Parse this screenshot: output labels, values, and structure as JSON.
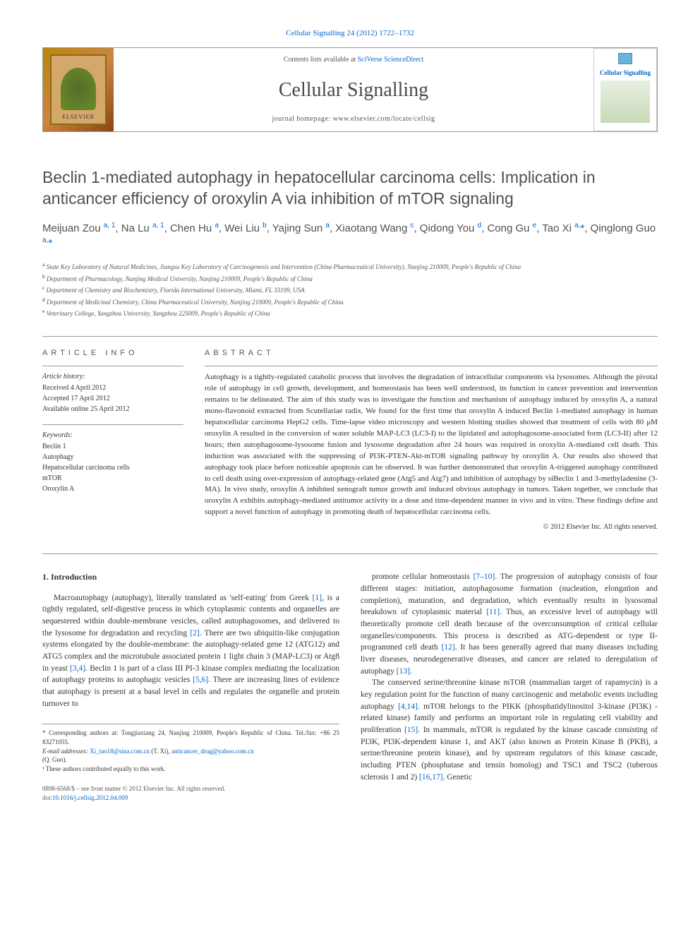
{
  "citation": "Cellular Signalling 24 (2012) 1722–1732",
  "header": {
    "contents_prefix": "Contents lists available at ",
    "contents_link": "SciVerse ScienceDirect",
    "journal_name": "Cellular Signalling",
    "homepage_prefix": "journal homepage: ",
    "homepage_url": "www.elsevier.com/locate/cellsig",
    "publisher": "ELSEVIER",
    "cover_title": "Cellular Signalling"
  },
  "title": "Beclin 1-mediated autophagy in hepatocellular carcinoma cells: Implication in anticancer efficiency of oroxylin A via inhibition of mTOR signaling",
  "authors_html": "Meijuan Zou <sup>a, 1</sup>, Na Lu <sup>a, 1</sup>, Chen Hu <sup>a</sup>, Wei Liu <sup>b</sup>, Yajing Sun <sup>a</sup>, Xiaotang Wang <sup>c</sup>, Qidong You <sup>d</sup>, Cong Gu <sup>e</sup>, Tao Xi <sup>a,</sup><span class='corr'>*</span>, Qinglong Guo <sup>a,</sup><span class='corr'>*</span>",
  "affiliations": [
    "State Key Laboratory of Natural Medicines, Jiangsu Key Laboratory of Carcinogenesis and Intervention (China Pharmaceutical University), Nanjing 210009, People's Republic of China",
    "Department of Pharmacology, Nanjing Medical University, Nanjing 210009, People's Republic of China",
    "Department of Chemistry and Biochemistry, Florida International University, Miami, FL 33199, USA",
    "Department of Medicinal Chemistry, China Pharmaceutical University, Nanjing 210009, People's Republic of China",
    "Veterinary College, Yangzhou University, Yangzhou 225009, People's Republic of China"
  ],
  "aff_markers": [
    "a",
    "b",
    "c",
    "d",
    "e"
  ],
  "article_info": {
    "heading": "ARTICLE INFO",
    "history_label": "Article history:",
    "received": "Received 4 April 2012",
    "accepted": "Accepted 17 April 2012",
    "online": "Available online 25 April 2012",
    "keywords_label": "Keywords:",
    "keywords": [
      "Beclin 1",
      "Autophagy",
      "Hepatocellular carcinoma cells",
      "mTOR",
      "Oroxylin A"
    ]
  },
  "abstract": {
    "heading": "ABSTRACT",
    "text": "Autophagy is a tightly-regulated catabolic process that involves the degradation of intracellular components via lysosomes. Although the pivotal role of autophagy in cell growth, development, and homeostasis has been well understood, its function in cancer prevention and intervention remains to be delineated. The aim of this study was to investigate the function and mechanism of autophagy induced by oroxylin A, a natural mono-flavonoid extracted from Scutellariae radix. We found for the first time that oroxylin A induced Beclin 1-mediated autophagy in human hepatocellular carcinoma HepG2 cells. Time-lapse video microscopy and western blotting studies showed that treatment of cells with 80 μM oroxylin A resulted in the conversion of water soluble MAP-LC3 (LC3-I) to the lipidated and autophagosome-associated form (LC3-II) after 12 hours; then autophagosome-lysosome fusion and lysosome degradation after 24 hours was required in oroxylin A-mediated cell death. This induction was associated with the suppressing of PI3K-PTEN-Akt-mTOR signaling pathway by oroxylin A. Our results also showed that autophagy took place before noticeable apoptosis can be observed. It was further demonstrated that oroxylin A-triggered autophagy contributed to cell death using over-expression of autophagy-related gene (Atg5 and Atg7) and inhibition of autophagy by siBeclin 1 and 3-methyladenine (3-MA). In vivo study, oroxylin A inhibited xenograft tumor growth and induced obvious autophagy in tumors. Taken together, we conclude that oroxylin A exhibits autophagy-mediated antitumor activity in a dose and time-dependent manner in vivo and in vitro. These findings define and support a novel function of autophagy in promoting death of hepatocellular carcinoma cells.",
    "copyright": "© 2012 Elsevier Inc. All rights reserved."
  },
  "introduction": {
    "heading": "1. Introduction",
    "col1_p1": "Macroautophagy (autophagy), literally translated as 'self-eating' from Greek [1], is a tightly regulated, self-digestive process in which cytoplasmic contents and organelles are sequestered within double-membrane vesicles, called autophagosomes, and delivered to the lysosome for degradation and recycling [2]. There are two ubiquitin-like conjugation systems elongated by the double-membrane: the autophagy-related gene 12 (ATG12) and ATG5 complex and the microtubule associated protein 1 light chain 3 (MAP-LC3) or Atg8 in yeast [3,4]. Beclin 1 is part of a class III PI-3 kinase complex mediating the localization of autophagy proteins to autophagic vesicles [5,6]. There are increasing lines of evidence that autophagy is present at a basal level in cells and regulates the organelle and protein turnover to",
    "col2_p1": "promote cellular homeostasis [7–10]. The progression of autophagy consists of four different stages: initiation, autophagosome formation (nucleation, elongation and completion), maturation, and degradation, which eventually results in lysosomal breakdown of cytoplasmic material [11]. Thus, an excessive level of autophagy will theoretically promote cell death because of the overconsumption of critical cellular organelles/components. This process is described as ATG-dependent or type II-programmed cell death [12]. It has been generally agreed that many diseases including liver diseases, neurodegenerative diseases, and cancer are related to deregulation of autophagy [13].",
    "col2_p2": "The conserved serine/threonine kinase mTOR (mammalian target of rapamycin) is a key regulation point for the function of many carcinogenic and metabolic events including autophagy [4,14]. mTOR belongs to the PIKK (phosphatidylinositol 3-kinase (PI3K) -related kinase) family and performs an important role in regulating cell viability and proliferation [15]. In mammals, mTOR is regulated by the kinase cascade consisting of PI3K, PI3K-dependent kinase 1, and AKT (also known as Protein Kinase B (PKB), a serine/threonine protein kinase), and by upstream regulators of this kinase cascade, including PTEN (phosphatase and tensin homolog) and TSC1 and TSC2 (tuberous sclerosis 1 and 2) [16,17]. Genetic"
  },
  "footnotes": {
    "corr": "* Corresponding authors at: Tongjiaxiang 24, Nanjing 210009, People's Republic of China. Tel./fax: +86 25 83271055.",
    "email_label": "E-mail addresses: ",
    "email1": "Xi_tao18@sina.com.cn",
    "email1_name": " (T. Xi), ",
    "email2": "anticancer_drug@yahoo.com.cn",
    "email2_name": " (Q. Guo).",
    "equal": "¹ These authors contributed equally to this work."
  },
  "doi": {
    "line1": "0898-6568/$ – see front matter © 2012 Elsevier Inc. All rights reserved.",
    "line2_prefix": "doi:",
    "line2_link": "10.1016/j.cellsig.2012.04.009"
  },
  "colors": {
    "link": "#0066cc",
    "text": "#333333",
    "heading": "#505050",
    "border": "#999999"
  }
}
